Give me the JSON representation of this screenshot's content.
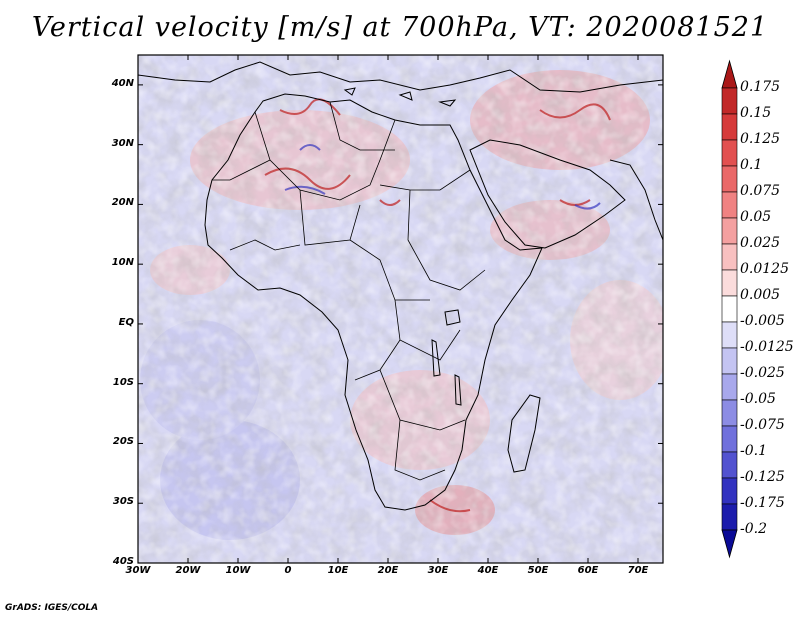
{
  "title": "Vertical velocity [m/s] at 700hPa, VT: 2020081521",
  "credit": "GrADS: IGES/COLA",
  "chart_data": {
    "type": "heatmap",
    "variable": "Vertical velocity",
    "units": "m/s",
    "level": "700hPa",
    "valid_time": "2020081521",
    "lon_range": [
      -30,
      75
    ],
    "lat_range": [
      -40,
      45
    ],
    "lat_ticks": [
      "40N",
      "30N",
      "20N",
      "10N",
      "EQ",
      "10S",
      "20S",
      "30S",
      "40S"
    ],
    "lat_tick_values": [
      40,
      30,
      20,
      10,
      0,
      -10,
      -20,
      -30,
      -40
    ],
    "lon_ticks": [
      "30W",
      "20W",
      "10W",
      "0",
      "10E",
      "20E",
      "30E",
      "40E",
      "50E",
      "60E",
      "70E"
    ],
    "lon_tick_values": [
      -30,
      -20,
      -10,
      0,
      10,
      20,
      30,
      40,
      50,
      60,
      70
    ],
    "colorbar_levels": [
      "0.175",
      "0.15",
      "0.125",
      "0.1",
      "0.075",
      "0.05",
      "0.025",
      "0.0125",
      "0.005",
      "-0.005",
      "-0.0125",
      "-0.025",
      "-0.05",
      "-0.075",
      "-0.1",
      "-0.125",
      "-0.175",
      "-0.2"
    ],
    "colorbar_colors": [
      "#aa1818",
      "#c22828",
      "#d63a3a",
      "#e25050",
      "#ea6868",
      "#f08282",
      "#f4a0a0",
      "#f8c0c0",
      "#fbdcdc",
      "#ffffff",
      "#dedef8",
      "#c4c4f2",
      "#a8a8ec",
      "#8c8ce4",
      "#7070dc",
      "#5252d0",
      "#3232c0",
      "#1c1cac",
      "#0a0a96"
    ]
  },
  "colors": {
    "background": "#ffffff",
    "ocean_base": "#dcdcf4",
    "coast": "#000000"
  }
}
